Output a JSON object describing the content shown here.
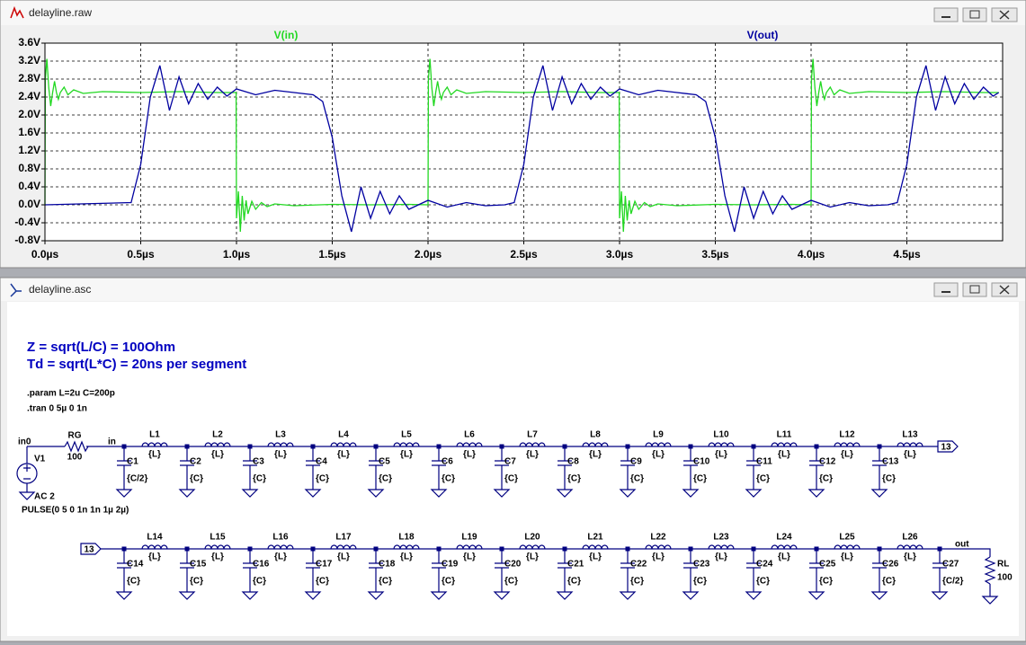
{
  "waveform_window": {
    "title": "delayline.raw"
  },
  "chart_data": {
    "type": "line",
    "series": [
      {
        "name": "V(in)",
        "color": "#22d822",
        "x": [
          0,
          0.002,
          0.01,
          0.02,
          0.03,
          0.04,
          0.05,
          0.06,
          0.07,
          0.08,
          0.1,
          0.12,
          0.15,
          0.2,
          0.3,
          0.5,
          0.7,
          0.9,
          0.998,
          1.0,
          1.01,
          1.02,
          1.03,
          1.04,
          1.05,
          1.06,
          1.08,
          1.1,
          1.13,
          1.16,
          1.2,
          1.3,
          1.5,
          1.7,
          1.9,
          1.998,
          2.0,
          2.002,
          2.01,
          2.02,
          2.03,
          2.04,
          2.05,
          2.06,
          2.07,
          2.08,
          2.1,
          2.12,
          2.15,
          2.2,
          2.3,
          2.5,
          2.7,
          2.9,
          2.998,
          3.0,
          3.01,
          3.02,
          3.03,
          3.04,
          3.05,
          3.06,
          3.08,
          3.1,
          3.13,
          3.16,
          3.2,
          3.3,
          3.5,
          3.7,
          3.9,
          3.998,
          4.0,
          4.002,
          4.01,
          4.02,
          4.03,
          4.04,
          4.05,
          4.06,
          4.07,
          4.08,
          4.1,
          4.12,
          4.15,
          4.2,
          4.3,
          4.5,
          4.7,
          4.9,
          4.98
        ],
        "values": [
          0,
          2.8,
          3.25,
          2.6,
          2.2,
          2.5,
          2.75,
          2.5,
          2.35,
          2.5,
          2.62,
          2.45,
          2.56,
          2.48,
          2.52,
          2.5,
          2.52,
          2.5,
          2.5,
          -0.3,
          0.3,
          -0.6,
          0.2,
          -0.35,
          0.1,
          -0.2,
          0.08,
          -0.1,
          0.05,
          -0.04,
          0.02,
          -0.02,
          0.01,
          0,
          0.01,
          0,
          0,
          2.8,
          3.25,
          2.6,
          2.2,
          2.5,
          2.75,
          2.5,
          2.35,
          2.5,
          2.62,
          2.45,
          2.56,
          2.48,
          2.52,
          2.5,
          2.52,
          2.5,
          2.5,
          -0.3,
          0.3,
          -0.6,
          0.2,
          -0.35,
          0.1,
          -0.2,
          0.08,
          -0.1,
          0.05,
          -0.04,
          0.02,
          -0.02,
          0.01,
          0,
          0.01,
          0,
          0,
          2.8,
          3.25,
          2.6,
          2.2,
          2.5,
          2.75,
          2.5,
          2.35,
          2.5,
          2.62,
          2.45,
          2.56,
          2.48,
          2.52,
          2.5,
          2.52,
          2.5,
          2.5
        ]
      },
      {
        "name": "V(out)",
        "color": "#0000a0",
        "x": [
          0,
          0.45,
          0.5,
          0.55,
          0.6,
          0.65,
          0.7,
          0.75,
          0.8,
          0.85,
          0.9,
          0.95,
          1.0,
          1.1,
          1.2,
          1.3,
          1.4,
          1.45,
          1.5,
          1.55,
          1.6,
          1.65,
          1.7,
          1.75,
          1.8,
          1.85,
          1.9,
          2.0,
          2.1,
          2.2,
          2.3,
          2.4,
          2.45,
          2.5,
          2.55,
          2.6,
          2.65,
          2.7,
          2.75,
          2.8,
          2.85,
          2.9,
          2.95,
          3.0,
          3.1,
          3.2,
          3.3,
          3.4,
          3.45,
          3.5,
          3.55,
          3.6,
          3.65,
          3.7,
          3.75,
          3.8,
          3.85,
          3.9,
          4.0,
          4.1,
          4.2,
          4.3,
          4.4,
          4.45,
          4.5,
          4.55,
          4.6,
          4.65,
          4.7,
          4.75,
          4.8,
          4.85,
          4.9,
          4.95,
          4.98
        ],
        "values": [
          0,
          0.05,
          0.9,
          2.4,
          3.1,
          2.1,
          2.85,
          2.25,
          2.7,
          2.35,
          2.62,
          2.42,
          2.58,
          2.45,
          2.55,
          2.5,
          2.45,
          2.3,
          1.5,
          0.2,
          -0.6,
          0.4,
          -0.3,
          0.3,
          -0.2,
          0.2,
          -0.1,
          0.1,
          -0.05,
          0.05,
          -0.02,
          0,
          0.05,
          0.9,
          2.4,
          3.1,
          2.1,
          2.85,
          2.25,
          2.7,
          2.35,
          2.62,
          2.42,
          2.58,
          2.45,
          2.55,
          2.5,
          2.45,
          2.3,
          1.5,
          0.2,
          -0.6,
          0.4,
          -0.3,
          0.3,
          -0.2,
          0.2,
          -0.1,
          0.1,
          -0.05,
          0.05,
          -0.02,
          0,
          0.05,
          0.9,
          2.4,
          3.1,
          2.1,
          2.85,
          2.25,
          2.7,
          2.35,
          2.62,
          2.42,
          2.5
        ]
      }
    ],
    "xlim": [
      0,
      5
    ],
    "xticks": [
      {
        "value": 0,
        "label": "0.0µs"
      },
      {
        "value": 0.5,
        "label": "0.5µs"
      },
      {
        "value": 1,
        "label": "1.0µs"
      },
      {
        "value": 1.5,
        "label": "1.5µs"
      },
      {
        "value": 2,
        "label": "2.0µs"
      },
      {
        "value": 2.5,
        "label": "2.5µs"
      },
      {
        "value": 3,
        "label": "3.0µs"
      },
      {
        "value": 3.5,
        "label": "3.5µs"
      },
      {
        "value": 4,
        "label": "4.0µs"
      },
      {
        "value": 4.5,
        "label": "4.5µs"
      }
    ],
    "ylim": [
      -0.8,
      3.6
    ],
    "yticks": [
      {
        "value": -0.8,
        "label": "-0.8V"
      },
      {
        "value": -0.4,
        "label": "-0.4V"
      },
      {
        "value": 0,
        "label": "0.0V"
      },
      {
        "value": 0.4,
        "label": "0.4V"
      },
      {
        "value": 0.8,
        "label": "0.8V"
      },
      {
        "value": 1.2,
        "label": "1.2V"
      },
      {
        "value": 1.6,
        "label": "1.6V"
      },
      {
        "value": 2,
        "label": "2.0V"
      },
      {
        "value": 2.4,
        "label": "2.4V"
      },
      {
        "value": 2.8,
        "label": "2.8V"
      },
      {
        "value": 3.2,
        "label": "3.2V"
      },
      {
        "value": 3.6,
        "label": "3.6V"
      }
    ],
    "grid": true
  },
  "schematic_window": {
    "title": "delayline.asc",
    "notes": [
      "Z = sqrt(L/C) = 100Ohm",
      "Td = sqrt(L*C) = 20ns per segment"
    ],
    "directives": [
      ".param L=2u  C=200p",
      ".tran 0 5µ 0 1n"
    ],
    "source": {
      "node": "in0",
      "name": "V1",
      "value": "AC 2",
      "pulse": "PULSE(0 5 0 1n 1n 1µ 2µ)"
    },
    "rg": {
      "name": "RG",
      "value": "100"
    },
    "node_in": "in",
    "flag": "13",
    "node_out": "out",
    "rl": {
      "name": "RL",
      "value": "100"
    },
    "inductors": [
      {
        "name": "L1",
        "value": "{L}"
      },
      {
        "name": "L2",
        "value": "{L}"
      },
      {
        "name": "L3",
        "value": "{L}"
      },
      {
        "name": "L4",
        "value": "{L}"
      },
      {
        "name": "L5",
        "value": "{L}"
      },
      {
        "name": "L6",
        "value": "{L}"
      },
      {
        "name": "L7",
        "value": "{L}"
      },
      {
        "name": "L8",
        "value": "{L}"
      },
      {
        "name": "L9",
        "value": "{L}"
      },
      {
        "name": "L10",
        "value": "{L}"
      },
      {
        "name": "L11",
        "value": "{L}"
      },
      {
        "name": "L12",
        "value": "{L}"
      },
      {
        "name": "L13",
        "value": "{L}"
      },
      {
        "name": "L14",
        "value": "{L}"
      },
      {
        "name": "L15",
        "value": "{L}"
      },
      {
        "name": "L16",
        "value": "{L}"
      },
      {
        "name": "L17",
        "value": "{L}"
      },
      {
        "name": "L18",
        "value": "{L}"
      },
      {
        "name": "L19",
        "value": "{L}"
      },
      {
        "name": "L20",
        "value": "{L}"
      },
      {
        "name": "L21",
        "value": "{L}"
      },
      {
        "name": "L22",
        "value": "{L}"
      },
      {
        "name": "L23",
        "value": "{L}"
      },
      {
        "name": "L24",
        "value": "{L}"
      },
      {
        "name": "L25",
        "value": "{L}"
      },
      {
        "name": "L26",
        "value": "{L}"
      }
    ],
    "capacitors": [
      {
        "name": "C1",
        "value": "{C/2}"
      },
      {
        "name": "C2",
        "value": "{C}"
      },
      {
        "name": "C3",
        "value": "{C}"
      },
      {
        "name": "C4",
        "value": "{C}"
      },
      {
        "name": "C5",
        "value": "{C}"
      },
      {
        "name": "C6",
        "value": "{C}"
      },
      {
        "name": "C7",
        "value": "{C}"
      },
      {
        "name": "C8",
        "value": "{C}"
      },
      {
        "name": "C9",
        "value": "{C}"
      },
      {
        "name": "C10",
        "value": "{C}"
      },
      {
        "name": "C11",
        "value": "{C}"
      },
      {
        "name": "C12",
        "value": "{C}"
      },
      {
        "name": "C13",
        "value": "{C}"
      },
      {
        "name": "C14",
        "value": "{C}"
      },
      {
        "name": "C15",
        "value": "{C}"
      },
      {
        "name": "C16",
        "value": "{C}"
      },
      {
        "name": "C17",
        "value": "{C}"
      },
      {
        "name": "C18",
        "value": "{C}"
      },
      {
        "name": "C19",
        "value": "{C}"
      },
      {
        "name": "C20",
        "value": "{C}"
      },
      {
        "name": "C21",
        "value": "{C}"
      },
      {
        "name": "C22",
        "value": "{C}"
      },
      {
        "name": "C23",
        "value": "{C}"
      },
      {
        "name": "C24",
        "value": "{C}"
      },
      {
        "name": "C25",
        "value": "{C}"
      },
      {
        "name": "C26",
        "value": "{C}"
      },
      {
        "name": "C27",
        "value": "{C/2}"
      }
    ]
  }
}
